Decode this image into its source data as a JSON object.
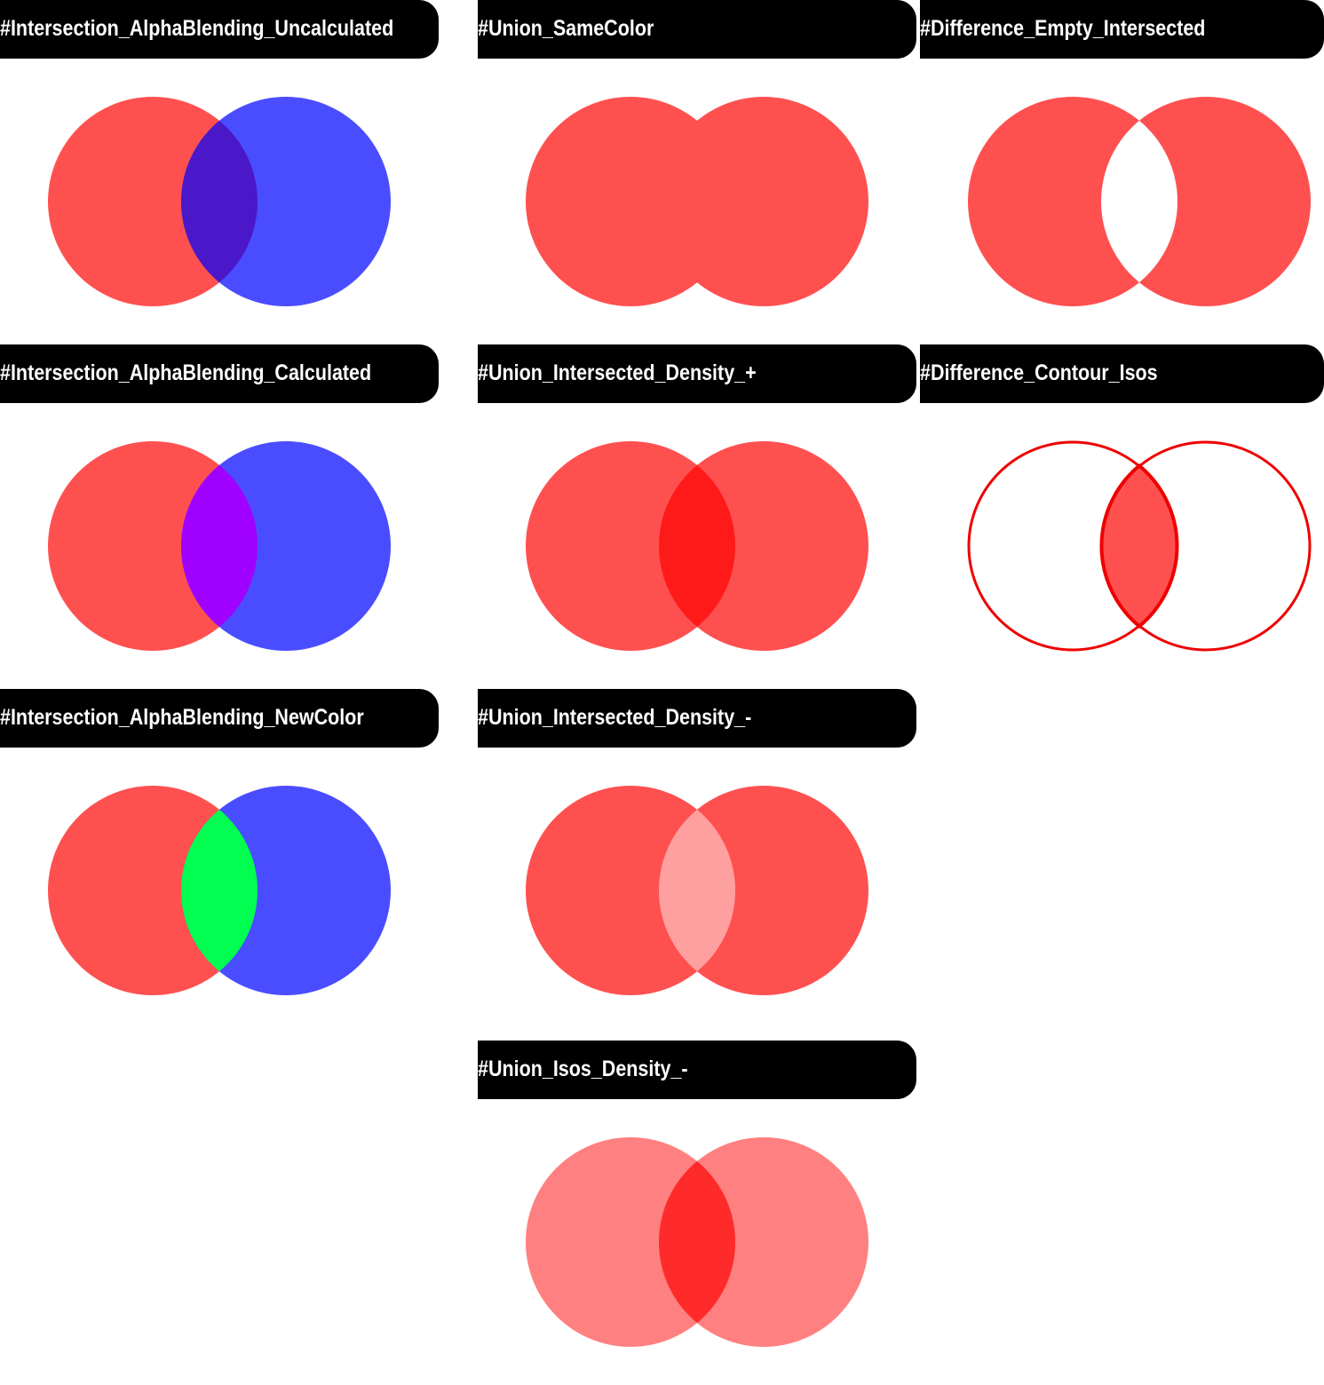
{
  "colors": {
    "red": "#ff5050",
    "blue": "#4a4dff",
    "deep_overlap": "#4a18c8",
    "purple": "#a000ff",
    "green": "#00ff50",
    "bright_red": "#ff1a1a",
    "pale_red": "#ffa0a0",
    "light_red": "#ff8080",
    "mid_red": "#ff2a2a",
    "outline_red": "#ee0000"
  },
  "panels": [
    {
      "id": "p1",
      "label": "#Intersection_AlphaBlending_Uncalculated",
      "left": "red",
      "right": "blue",
      "overlap": "deep_overlap",
      "mode": "fill"
    },
    {
      "id": "p2",
      "label": "#Union_SameColor",
      "left": "red",
      "right": "red",
      "overlap": "red",
      "mode": "fill"
    },
    {
      "id": "p3",
      "label": "#Difference_Empty_Intersected",
      "left": "red",
      "right": "red",
      "overlap": "none",
      "mode": "fill"
    },
    {
      "id": "p4",
      "label": "#Intersection_AlphaBlending_Calculated",
      "left": "red",
      "right": "blue",
      "overlap": "purple",
      "mode": "fill"
    },
    {
      "id": "p5",
      "label": "#Union_Intersected_Density_+",
      "left": "red",
      "right": "red",
      "overlap": "bright_red",
      "mode": "fill"
    },
    {
      "id": "p6",
      "label": "#Difference_Contour_Isos",
      "left": "none",
      "right": "none",
      "overlap": "red",
      "mode": "contour"
    },
    {
      "id": "p7",
      "label": "#Intersection_AlphaBlending_NewColor",
      "left": "red",
      "right": "blue",
      "overlap": "green",
      "mode": "fill"
    },
    {
      "id": "p8",
      "label": "#Union_Intersected_Density_-",
      "left": "red",
      "right": "red",
      "overlap": "pale_red",
      "mode": "fill"
    },
    {
      "id": "p9",
      "label": "#Union_Isos_Density_-",
      "left": "light_red",
      "right": "light_red",
      "overlap": "mid_red",
      "mode": "fill"
    }
  ]
}
